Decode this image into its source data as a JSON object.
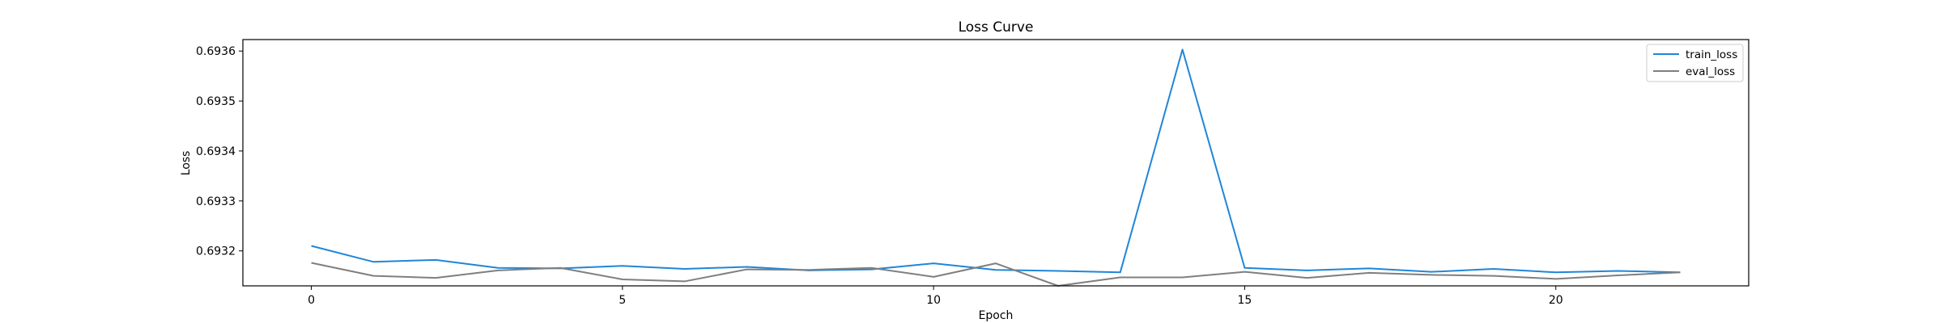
{
  "chart_data": {
    "type": "line",
    "title": "Loss Curve",
    "xlabel": "Epoch",
    "ylabel": "Loss",
    "x": [
      0,
      1,
      2,
      3,
      4,
      5,
      6,
      7,
      8,
      9,
      10,
      11,
      12,
      13,
      14,
      15,
      16,
      17,
      18,
      19,
      20,
      21,
      22
    ],
    "xlim": [
      -1.1,
      23.1
    ],
    "ylim": [
      0.69313,
      0.693623
    ],
    "xticks": [
      0,
      5,
      10,
      15,
      20
    ],
    "xtick_labels": [
      "0",
      "5",
      "10",
      "15",
      "20"
    ],
    "yticks": [
      0.6932,
      0.6933,
      0.6934,
      0.6935,
      0.6936
    ],
    "ytick_labels": [
      "0.6932",
      "0.6933",
      "0.6934",
      "0.6935",
      "0.6936"
    ],
    "grid": false,
    "legend_position": "top-right",
    "series": [
      {
        "name": "train_loss",
        "color": "#1f86d8",
        "values": [
          0.69321,
          0.693178,
          0.693182,
          0.693166,
          0.693165,
          0.69317,
          0.693164,
          0.693168,
          0.693161,
          0.693163,
          0.693175,
          0.693162,
          0.69316,
          0.693157,
          0.693603,
          0.693166,
          0.693161,
          0.693165,
          0.693158,
          0.693164,
          0.693157,
          0.69316,
          0.693157
        ]
      },
      {
        "name": "eval_loss",
        "color": "#7f7f7f",
        "values": [
          0.693176,
          0.69315,
          0.693146,
          0.693161,
          0.693166,
          0.693143,
          0.693139,
          0.693163,
          0.693162,
          0.693166,
          0.693148,
          0.693175,
          0.69313,
          0.693147,
          0.693147,
          0.693158,
          0.693146,
          0.693156,
          0.693152,
          0.69315,
          0.693144,
          0.693151,
          0.693157
        ]
      }
    ]
  }
}
